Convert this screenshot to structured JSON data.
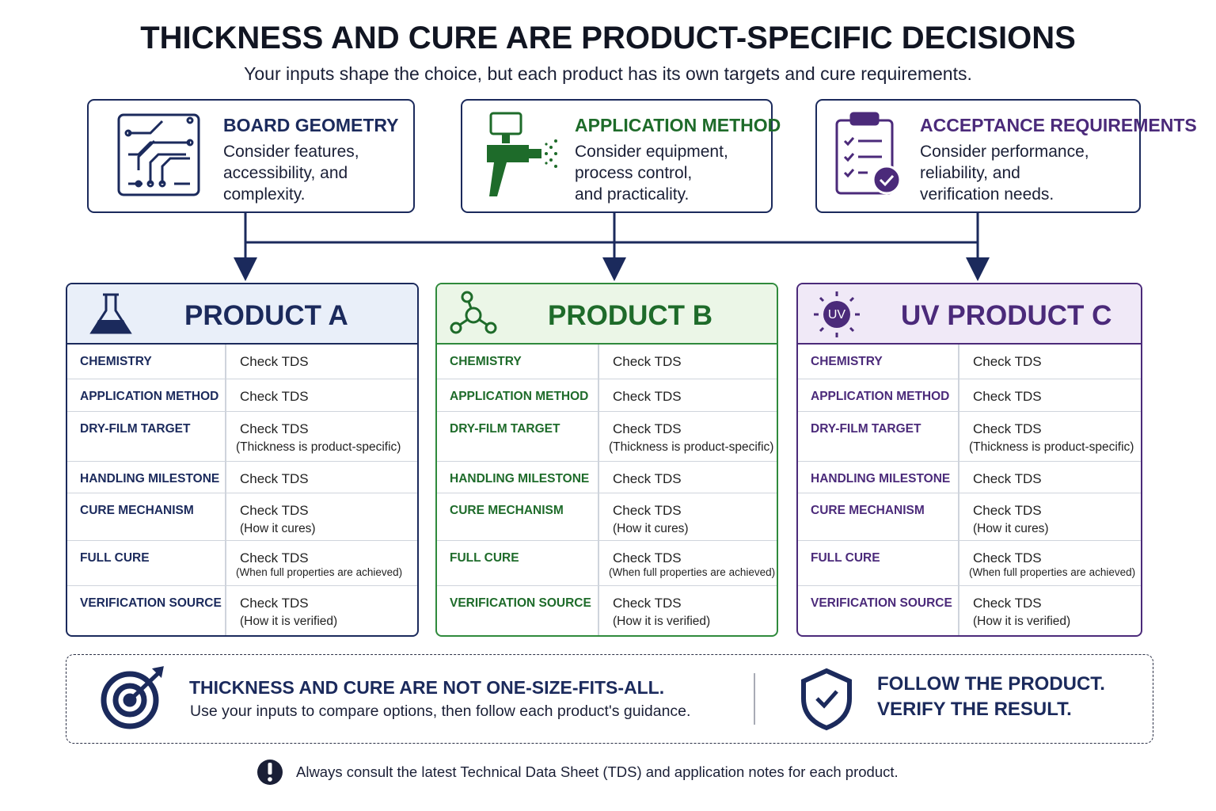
{
  "header": {
    "title": "THICKNESS AND CURE ARE PRODUCT-SPECIFIC DECISIONS",
    "subtitle": "Your inputs shape the choice, but each product has its own targets and cure requirements."
  },
  "inputs": [
    {
      "title": "BOARD GEOMETRY",
      "lines": [
        "Consider features,",
        "accessibility, and",
        "complexity."
      ]
    },
    {
      "title": "APPLICATION METHOD",
      "lines": [
        "Consider equipment,",
        "process control,",
        "and practicality."
      ]
    },
    {
      "title": "ACCEPTANCE REQUIREMENTS",
      "lines": [
        "Consider performance,",
        "reliability, and",
        "verification needs."
      ]
    }
  ],
  "products": [
    {
      "name": "PRODUCT A",
      "rows": [
        {
          "label": "CHEMISTRY",
          "value": "Check TDS"
        },
        {
          "label": "APPLICATION METHOD",
          "value": "Check TDS"
        },
        {
          "label": "DRY-FILM TARGET",
          "value": "Check TDS",
          "note": "(Thickness is product-specific)"
        },
        {
          "label": "HANDLING MILESTONE",
          "value": "Check TDS"
        },
        {
          "label": "CURE MECHANISM",
          "value": "Check TDS",
          "note": "(How it cures)"
        },
        {
          "label": "FULL CURE",
          "value": "Check TDS",
          "note": "(When full properties are achieved)"
        },
        {
          "label": "VERIFICATION SOURCE",
          "value": "Check TDS",
          "note": "(How it is verified)"
        }
      ]
    },
    {
      "name": "PRODUCT B",
      "rows": [
        {
          "label": "CHEMISTRY",
          "value": "Check TDS"
        },
        {
          "label": "APPLICATION METHOD",
          "value": "Check TDS"
        },
        {
          "label": "DRY-FILM TARGET",
          "value": "Check TDS",
          "note": "(Thickness is product-specific)"
        },
        {
          "label": "HANDLING MILESTONE",
          "value": "Check TDS"
        },
        {
          "label": "CURE MECHANISM",
          "value": "Check TDS",
          "note": "(How it cures)"
        },
        {
          "label": "FULL CURE",
          "value": "Check TDS",
          "note": "(When full properties are achieved)"
        },
        {
          "label": "VERIFICATION SOURCE",
          "value": "Check TDS",
          "note": "(How it is verified)"
        }
      ]
    },
    {
      "name": "UV PRODUCT C",
      "icon_label": "UV",
      "rows": [
        {
          "label": "CHEMISTRY",
          "value": "Check TDS"
        },
        {
          "label": "APPLICATION METHOD",
          "value": "Check TDS"
        },
        {
          "label": "DRY-FILM TARGET",
          "value": "Check TDS",
          "note": "(Thickness is product-specific)"
        },
        {
          "label": "HANDLING MILESTONE",
          "value": "Check TDS"
        },
        {
          "label": "CURE MECHANISM",
          "value": "Check TDS",
          "note": "(How it cures)"
        },
        {
          "label": "FULL CURE",
          "value": "Check TDS",
          "note": "(When full properties are achieved)"
        },
        {
          "label": "VERIFICATION SOURCE",
          "value": "Check TDS",
          "note": "(How it is verified)"
        }
      ]
    }
  ],
  "banner": {
    "heading": "THICKNESS AND CURE ARE NOT ONE-SIZE-FITS-ALL.",
    "text": "Use your inputs to compare options, then follow each product's guidance.",
    "callout": [
      "FOLLOW THE PRODUCT.",
      "VERIFY THE RESULT."
    ]
  },
  "note": "Always consult the latest Technical Data Sheet (TDS) and application notes for each product."
}
